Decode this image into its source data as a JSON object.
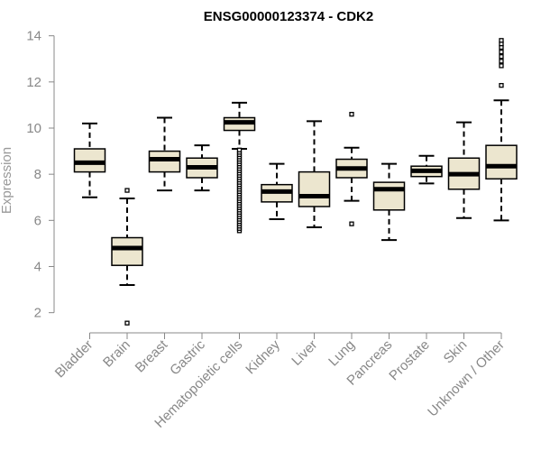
{
  "chart_data": {
    "type": "boxplot",
    "title": "ENSG00000123374 - CDK2",
    "xlabel": "",
    "ylabel": "Expression",
    "ylim": [
      1.4,
      14.3
    ],
    "yticks": [
      2,
      4,
      6,
      8,
      10,
      12,
      14
    ],
    "grid": false,
    "legend": "none",
    "box_fill": "#ece6cf",
    "box_stroke": "#000000",
    "axis_color": "#888888",
    "categories": [
      "Bladder",
      "Brain",
      "Breast",
      "Gastric",
      "Hematopoietic cells",
      "Kidney",
      "Liver",
      "Lung",
      "Pancreas",
      "Prostate",
      "Skin",
      "Unknown / Other"
    ],
    "boxes": [
      {
        "category": "Bladder",
        "whisker_low": 7.0,
        "q1": 8.1,
        "median": 8.5,
        "q3": 9.1,
        "whisker_high": 10.2,
        "outliers": []
      },
      {
        "category": "Brain",
        "whisker_low": 3.2,
        "q1": 4.05,
        "median": 4.8,
        "q3": 5.25,
        "whisker_high": 6.95,
        "outliers": [
          1.55,
          7.3
        ]
      },
      {
        "category": "Breast",
        "whisker_low": 7.3,
        "q1": 8.1,
        "median": 8.65,
        "q3": 9.0,
        "whisker_high": 10.45,
        "outliers": []
      },
      {
        "category": "Gastric",
        "whisker_low": 7.3,
        "q1": 7.85,
        "median": 8.3,
        "q3": 8.7,
        "whisker_high": 9.25,
        "outliers": []
      },
      {
        "category": "Hematopoietic cells",
        "whisker_low": 9.1,
        "q1": 9.9,
        "median": 10.25,
        "q3": 10.45,
        "whisker_high": 11.1,
        "outliers": [
          5.55,
          5.65,
          5.75,
          5.85,
          5.95,
          6.05,
          6.15,
          6.25,
          6.35,
          6.45,
          6.55,
          6.65,
          6.75,
          6.85,
          6.95,
          7.05,
          7.15,
          7.25,
          7.35,
          7.45,
          7.55,
          7.65,
          7.75,
          7.85,
          7.95,
          8.05,
          8.15,
          8.25,
          8.35,
          8.45,
          8.55,
          8.65,
          8.75,
          8.85,
          8.95,
          9.05
        ]
      },
      {
        "category": "Kidney",
        "whisker_low": 6.05,
        "q1": 6.8,
        "median": 7.25,
        "q3": 7.55,
        "whisker_high": 8.45,
        "outliers": []
      },
      {
        "category": "Liver",
        "whisker_low": 5.7,
        "q1": 6.6,
        "median": 7.05,
        "q3": 8.1,
        "whisker_high": 10.3,
        "outliers": []
      },
      {
        "category": "Lung",
        "whisker_low": 6.85,
        "q1": 7.85,
        "median": 8.25,
        "q3": 8.65,
        "whisker_high": 9.15,
        "outliers": [
          5.85,
          10.6
        ]
      },
      {
        "category": "Pancreas",
        "whisker_low": 5.15,
        "q1": 6.45,
        "median": 7.35,
        "q3": 7.65,
        "whisker_high": 8.45,
        "outliers": []
      },
      {
        "category": "Prostate",
        "whisker_low": 7.6,
        "q1": 7.9,
        "median": 8.15,
        "q3": 8.35,
        "whisker_high": 8.8,
        "outliers": []
      },
      {
        "category": "Skin",
        "whisker_low": 6.1,
        "q1": 7.35,
        "median": 8.0,
        "q3": 8.7,
        "whisker_high": 10.25,
        "outliers": []
      },
      {
        "category": "Unknown / Other",
        "whisker_low": 6.0,
        "q1": 7.8,
        "median": 8.35,
        "q3": 9.25,
        "whisker_high": 11.2,
        "outliers": [
          11.85,
          12.7,
          12.9,
          13.1,
          13.3,
          13.5,
          13.65,
          13.8
        ]
      }
    ]
  }
}
